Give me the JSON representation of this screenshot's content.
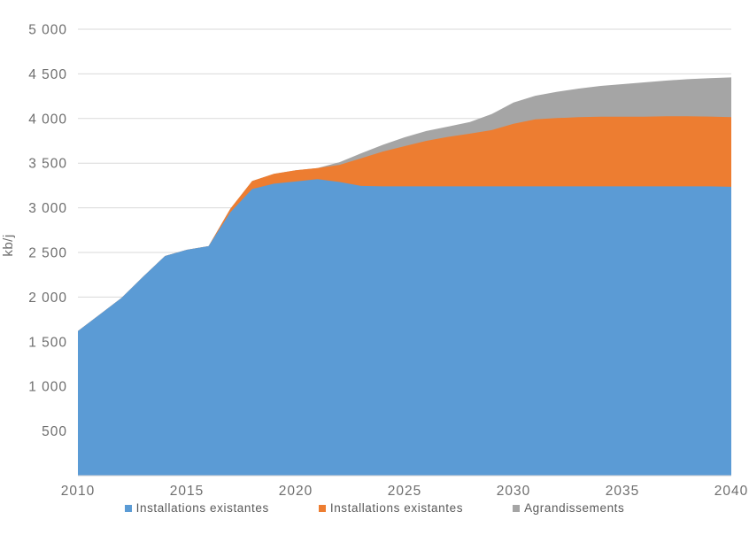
{
  "chart_data": {
    "type": "area",
    "stacked": true,
    "title": "",
    "xlabel": "",
    "ylabel": "kb/j",
    "grid": true,
    "legend_position": "bottom",
    "ylim": [
      0,
      5000
    ],
    "x": [
      2010,
      2011,
      2012,
      2013,
      2014,
      2015,
      2016,
      2017,
      2018,
      2019,
      2020,
      2021,
      2022,
      2023,
      2024,
      2025,
      2026,
      2027,
      2028,
      2029,
      2030,
      2031,
      2032,
      2033,
      2034,
      2035,
      2036,
      2037,
      2038,
      2039,
      2040
    ],
    "xtick_labels": [
      "2010",
      "2015",
      "2020",
      "2025",
      "2030",
      "2035",
      "2040"
    ],
    "xtick_values": [
      2010,
      2015,
      2020,
      2025,
      2030,
      2035,
      2040
    ],
    "ytick_labels": [
      "500",
      "1 000",
      "1 500",
      "2 000",
      "2 500",
      "3 000",
      "3 500",
      "4 000",
      "4 500",
      "5 000"
    ],
    "ytick_values": [
      500,
      1000,
      1500,
      2000,
      2500,
      3000,
      3500,
      4000,
      4500,
      5000
    ],
    "series": [
      {
        "name": "Installations existantes",
        "color": "#5B9BD5",
        "values": [
          1620,
          1805,
          1990,
          2230,
          2460,
          2530,
          2570,
          2950,
          3210,
          3270,
          3295,
          3320,
          3290,
          3245,
          3240,
          3240,
          3240,
          3240,
          3240,
          3240,
          3240,
          3240,
          3240,
          3240,
          3240,
          3240,
          3240,
          3240,
          3240,
          3240,
          3235
        ]
      },
      {
        "name": "Installations existantes",
        "color": "#ED7D31",
        "values": [
          0,
          0,
          0,
          0,
          0,
          0,
          0,
          40,
          90,
          110,
          125,
          125,
          190,
          310,
          390,
          450,
          510,
          555,
          590,
          630,
          700,
          750,
          765,
          775,
          780,
          780,
          780,
          785,
          785,
          782,
          780
        ]
      },
      {
        "name": "Agrandissements",
        "color": "#A5A5A5",
        "values": [
          0,
          0,
          0,
          0,
          0,
          0,
          0,
          0,
          0,
          0,
          0,
          0,
          30,
          55,
          75,
          100,
          110,
          115,
          130,
          180,
          240,
          265,
          295,
          320,
          345,
          365,
          385,
          400,
          415,
          430,
          445
        ]
      }
    ],
    "axis_text_color": "#6e6e6e",
    "gridline_color": "#D9D9D9",
    "axisline_color": "#D2D2D2"
  }
}
